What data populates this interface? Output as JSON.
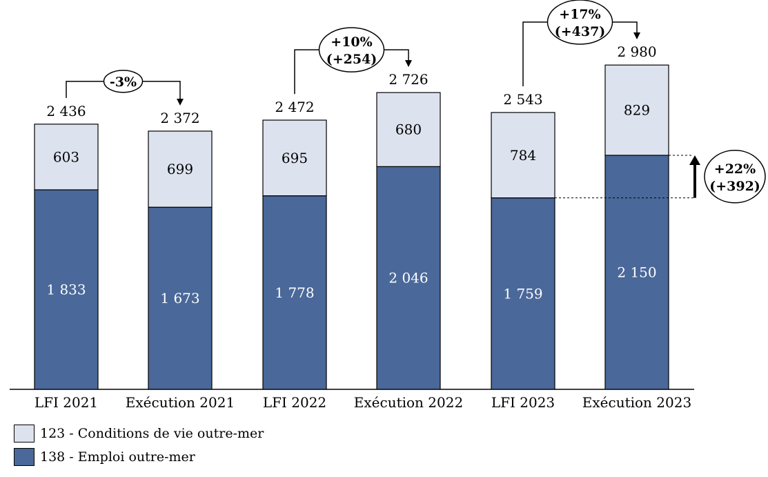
{
  "chart_data": {
    "type": "bar",
    "stacked": true,
    "categories": [
      "LFI 2021",
      "Exécution 2021",
      "LFI 2022",
      "Exécution 2022",
      "LFI 2023",
      "Exécution 2023"
    ],
    "series": [
      {
        "name": "138 - Emploi outre-mer",
        "values": [
          1833,
          1673,
          1778,
          2046,
          1759,
          2150
        ],
        "color": "#4a6899"
      },
      {
        "name": "123 - Conditions de vie outre-mer",
        "values": [
          603,
          699,
          695,
          680,
          784,
          829
        ],
        "color": "#dde3ee"
      }
    ],
    "totals": [
      2436,
      2372,
      2472,
      2726,
      2543,
      2980
    ],
    "value_labels": {
      "bottom": [
        "1 833",
        "1 673",
        "1 778",
        "2 046",
        "1 759",
        "2 150"
      ],
      "top": [
        "603",
        "699",
        "695",
        "680",
        "784",
        "829"
      ],
      "totals": [
        "2 436",
        "2 372",
        "2 472",
        "2 726",
        "2 543",
        "2 980"
      ]
    },
    "annotations": [
      {
        "from": 0,
        "to": 1,
        "lines": [
          "-3%"
        ]
      },
      {
        "from": 2,
        "to": 3,
        "lines": [
          "+10%",
          "(+254)"
        ]
      },
      {
        "from": 4,
        "to": 5,
        "lines": [
          "+17%",
          "(+437)"
        ]
      }
    ],
    "side_annotation": {
      "lines": [
        "+22%",
        "(+392)"
      ]
    },
    "ylim": [
      0,
      3000
    ],
    "grid": false,
    "legend_position": "bottom-left"
  },
  "legend": {
    "items": [
      {
        "label": "123 - Conditions de vie outre-mer",
        "color": "#dde3ee"
      },
      {
        "label": "138 - Emploi outre-mer",
        "color": "#4a6899"
      }
    ]
  }
}
